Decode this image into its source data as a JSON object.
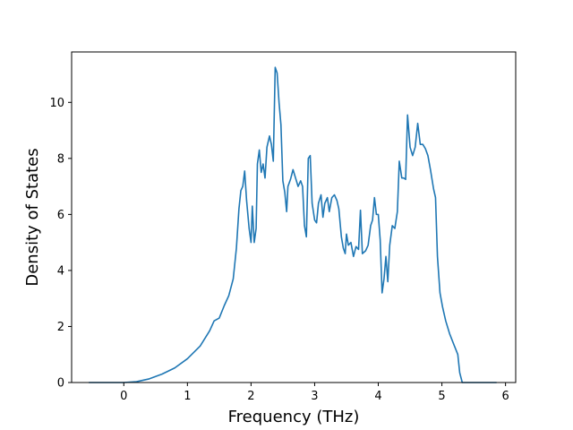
{
  "chart_data": {
    "type": "line",
    "title": "",
    "xlabel": "Frequency (THz)",
    "ylabel": "Density of States",
    "xlim": [
      -0.82,
      6.16
    ],
    "ylim": [
      0,
      11.8
    ],
    "grid": false,
    "x_ticks": [
      0,
      1,
      2,
      3,
      4,
      5,
      6
    ],
    "y_ticks": [
      0,
      2,
      4,
      6,
      8,
      10
    ],
    "series": [
      {
        "color": "#1f77b4",
        "points": [
          [
            -0.55,
            0.0
          ],
          [
            0.0,
            0.0
          ],
          [
            0.2,
            0.03
          ],
          [
            0.4,
            0.13
          ],
          [
            0.6,
            0.3
          ],
          [
            0.8,
            0.52
          ],
          [
            1.0,
            0.85
          ],
          [
            1.2,
            1.3
          ],
          [
            1.35,
            1.85
          ],
          [
            1.42,
            2.2
          ],
          [
            1.5,
            2.3
          ],
          [
            1.58,
            2.75
          ],
          [
            1.65,
            3.1
          ],
          [
            1.72,
            3.7
          ],
          [
            1.77,
            4.8
          ],
          [
            1.81,
            6.2
          ],
          [
            1.84,
            6.85
          ],
          [
            1.87,
            7.0
          ],
          [
            1.9,
            7.55
          ],
          [
            1.93,
            6.5
          ],
          [
            1.97,
            5.5
          ],
          [
            2.0,
            5.0
          ],
          [
            2.02,
            6.3
          ],
          [
            2.05,
            5.0
          ],
          [
            2.08,
            5.5
          ],
          [
            2.1,
            7.8
          ],
          [
            2.13,
            8.3
          ],
          [
            2.16,
            7.5
          ],
          [
            2.19,
            7.8
          ],
          [
            2.22,
            7.3
          ],
          [
            2.25,
            8.4
          ],
          [
            2.29,
            8.8
          ],
          [
            2.32,
            8.5
          ],
          [
            2.35,
            7.9
          ],
          [
            2.38,
            11.25
          ],
          [
            2.41,
            11.05
          ],
          [
            2.44,
            10.0
          ],
          [
            2.47,
            9.2
          ],
          [
            2.5,
            7.2
          ],
          [
            2.53,
            6.8
          ],
          [
            2.56,
            6.1
          ],
          [
            2.58,
            7.0
          ],
          [
            2.62,
            7.25
          ],
          [
            2.66,
            7.6
          ],
          [
            2.7,
            7.3
          ],
          [
            2.74,
            7.0
          ],
          [
            2.78,
            7.2
          ],
          [
            2.81,
            7.0
          ],
          [
            2.84,
            5.6
          ],
          [
            2.87,
            5.2
          ],
          [
            2.9,
            8.0
          ],
          [
            2.93,
            8.1
          ],
          [
            2.96,
            6.4
          ],
          [
            3.0,
            5.8
          ],
          [
            3.03,
            5.7
          ],
          [
            3.06,
            6.4
          ],
          [
            3.1,
            6.7
          ],
          [
            3.13,
            5.9
          ],
          [
            3.16,
            6.4
          ],
          [
            3.2,
            6.6
          ],
          [
            3.23,
            6.1
          ],
          [
            3.27,
            6.6
          ],
          [
            3.31,
            6.7
          ],
          [
            3.35,
            6.5
          ],
          [
            3.38,
            6.2
          ],
          [
            3.42,
            5.2
          ],
          [
            3.45,
            4.8
          ],
          [
            3.48,
            4.6
          ],
          [
            3.5,
            5.3
          ],
          [
            3.53,
            4.9
          ],
          [
            3.57,
            5.0
          ],
          [
            3.61,
            4.5
          ],
          [
            3.65,
            4.85
          ],
          [
            3.69,
            4.75
          ],
          [
            3.72,
            6.15
          ],
          [
            3.75,
            4.6
          ],
          [
            3.8,
            4.7
          ],
          [
            3.84,
            4.9
          ],
          [
            3.88,
            5.6
          ],
          [
            3.91,
            5.8
          ],
          [
            3.94,
            6.6
          ],
          [
            3.97,
            6.0
          ],
          [
            4.0,
            6.0
          ],
          [
            4.03,
            5.1
          ],
          [
            4.06,
            3.2
          ],
          [
            4.09,
            3.7
          ],
          [
            4.12,
            4.5
          ],
          [
            4.15,
            3.6
          ],
          [
            4.18,
            4.9
          ],
          [
            4.22,
            5.6
          ],
          [
            4.26,
            5.5
          ],
          [
            4.3,
            6.1
          ],
          [
            4.33,
            7.9
          ],
          [
            4.37,
            7.3
          ],
          [
            4.4,
            7.3
          ],
          [
            4.43,
            7.25
          ],
          [
            4.46,
            9.55
          ],
          [
            4.5,
            8.4
          ],
          [
            4.54,
            8.1
          ],
          [
            4.58,
            8.4
          ],
          [
            4.62,
            9.25
          ],
          [
            4.66,
            8.5
          ],
          [
            4.7,
            8.5
          ],
          [
            4.74,
            8.35
          ],
          [
            4.78,
            8.1
          ],
          [
            4.82,
            7.6
          ],
          [
            4.87,
            6.9
          ],
          [
            4.9,
            6.6
          ],
          [
            4.93,
            4.5
          ],
          [
            4.97,
            3.2
          ],
          [
            5.01,
            2.7
          ],
          [
            5.06,
            2.2
          ],
          [
            5.12,
            1.75
          ],
          [
            5.18,
            1.4
          ],
          [
            5.25,
            1.0
          ],
          [
            5.28,
            0.35
          ],
          [
            5.32,
            0.0
          ],
          [
            5.86,
            0.0
          ]
        ]
      }
    ]
  }
}
